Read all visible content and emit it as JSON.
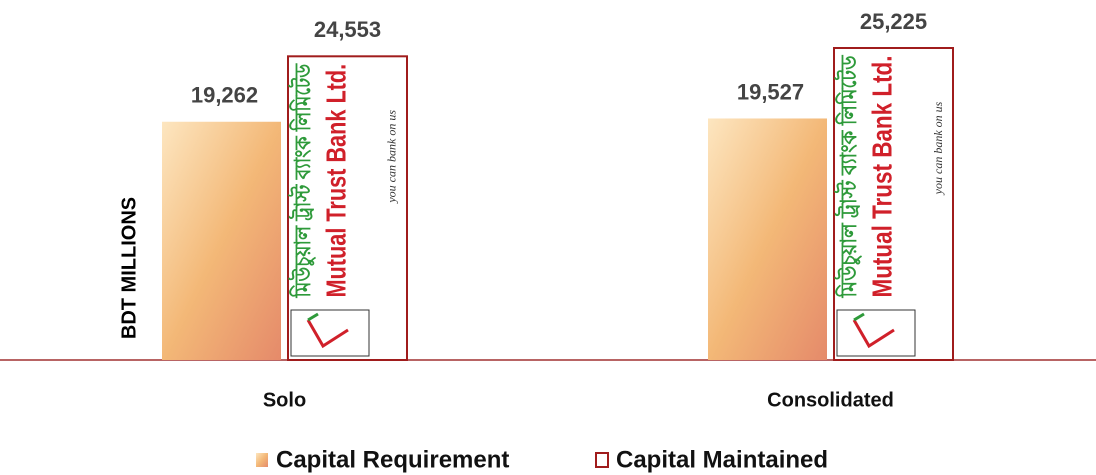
{
  "chart_data": {
    "type": "bar",
    "y_label": "BDT MILLIONS",
    "categories": [
      "Solo",
      "Consolidated"
    ],
    "series": [
      {
        "name": "Capital Requirement",
        "color": "#f0b070",
        "values": [
          19262,
          19527
        ],
        "value_labels": [
          "19,262",
          "19,527"
        ]
      },
      {
        "name": "Capital Maintained",
        "color": "#a01c1c",
        "values": [
          24553,
          25225
        ],
        "value_labels": [
          "24,553",
          "25,225"
        ]
      }
    ],
    "logo": {
      "bengali": "মিউচুয়াল ট্রাস্ট ব্যাংক লিমিটেড",
      "name": "Mutual Trust Bank Ltd.",
      "tagline": "you can bank on us"
    }
  }
}
